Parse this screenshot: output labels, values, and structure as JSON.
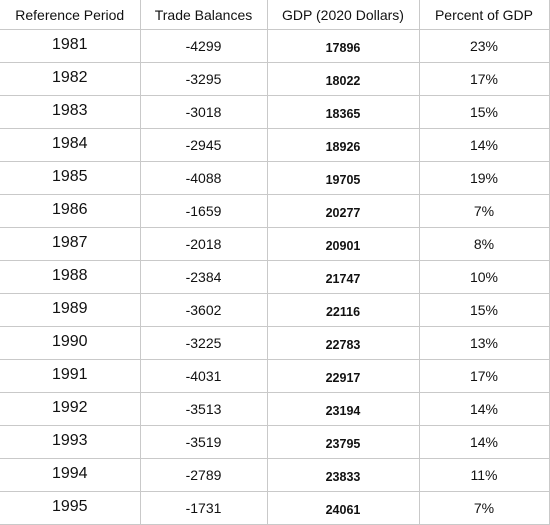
{
  "table": {
    "headers": [
      "Reference Period",
      "Trade Balances",
      "GDP (2020 Dollars)",
      "Percent of GDP"
    ],
    "rows": [
      {
        "period": "1981",
        "trade": "-4299",
        "gdp": "17896",
        "pct": "23%"
      },
      {
        "period": "1982",
        "trade": "-3295",
        "gdp": "18022",
        "pct": "17%"
      },
      {
        "period": "1983",
        "trade": "-3018",
        "gdp": "18365",
        "pct": "15%"
      },
      {
        "period": "1984",
        "trade": "-2945",
        "gdp": "18926",
        "pct": "14%"
      },
      {
        "period": "1985",
        "trade": "-4088",
        "gdp": "19705",
        "pct": "19%"
      },
      {
        "period": "1986",
        "trade": "-1659",
        "gdp": "20277",
        "pct": "7%"
      },
      {
        "period": "1987",
        "trade": "-2018",
        "gdp": "20901",
        "pct": "8%"
      },
      {
        "period": "1988",
        "trade": "-2384",
        "gdp": "21747",
        "pct": "10%"
      },
      {
        "period": "1989",
        "trade": "-3602",
        "gdp": "22116",
        "pct": "15%"
      },
      {
        "period": "1990",
        "trade": "-3225",
        "gdp": "22783",
        "pct": "13%"
      },
      {
        "period": "1991",
        "trade": "-4031",
        "gdp": "22917",
        "pct": "17%"
      },
      {
        "period": "1992",
        "trade": "-3513",
        "gdp": "23194",
        "pct": "14%"
      },
      {
        "period": "1993",
        "trade": "-3519",
        "gdp": "23795",
        "pct": "14%"
      },
      {
        "period": "1994",
        "trade": "-2789",
        "gdp": "23833",
        "pct": "11%"
      },
      {
        "period": "1995",
        "trade": "-1731",
        "gdp": "24061",
        "pct": "7%"
      }
    ]
  }
}
